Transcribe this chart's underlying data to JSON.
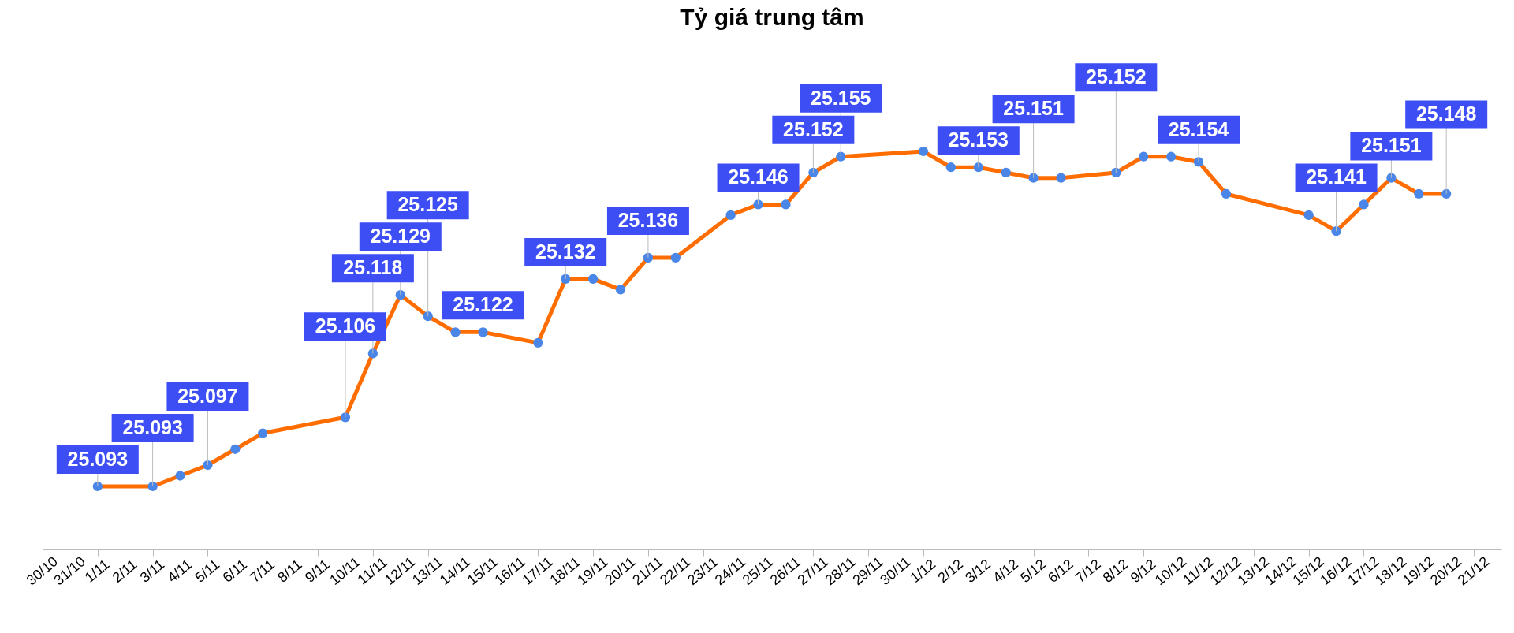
{
  "chart_data": {
    "type": "line",
    "title": "Tỷ giá trung tâm",
    "marker": "circle",
    "grid": false,
    "x": [
      "--11-01",
      "--11-03",
      "--11-04",
      "--11-05",
      "--11-06",
      "--11-07",
      "--11-10",
      "--11-11",
      "--11-12",
      "--11-13",
      "--11-14",
      "--11-15",
      "--11-17",
      "--11-18",
      "--11-19",
      "--11-20",
      "--11-21",
      "--11-22",
      "--11-24",
      "--11-25",
      "--11-26",
      "--11-27",
      "--11-28",
      "--12-01",
      "--12-02",
      "--12-03",
      "--12-04",
      "--12-05",
      "--12-06",
      "--12-08",
      "--12-09",
      "--12-10",
      "--12-11",
      "--12-12",
      "--12-15",
      "--12-16",
      "--12-17",
      "--12-18",
      "--12-19",
      "--12-20"
    ],
    "xlim": [
      "--10-30",
      "--12-22"
    ],
    "xticks": [
      {
        "value": "--10-30",
        "label": "30/10"
      },
      {
        "value": "--10-31",
        "label": "31/10"
      },
      {
        "value": "--11-01",
        "label": "1/11"
      },
      {
        "value": "--11-02",
        "label": "2/11"
      },
      {
        "value": "--11-03",
        "label": "3/11"
      },
      {
        "value": "--11-04",
        "label": "4/11"
      },
      {
        "value": "--11-05",
        "label": "5/11"
      },
      {
        "value": "--11-06",
        "label": "6/11"
      },
      {
        "value": "--11-07",
        "label": "7/11"
      },
      {
        "value": "--11-08",
        "label": "8/11"
      },
      {
        "value": "--11-09",
        "label": "9/11"
      },
      {
        "value": "--11-10",
        "label": "10/11"
      },
      {
        "value": "--11-11",
        "label": "11/11"
      },
      {
        "value": "--11-12",
        "label": "12/11"
      },
      {
        "value": "--11-13",
        "label": "13/11"
      },
      {
        "value": "--11-14",
        "label": "14/11"
      },
      {
        "value": "--11-15",
        "label": "15/11"
      },
      {
        "value": "--11-16",
        "label": "16/11"
      },
      {
        "value": "--11-17",
        "label": "17/11"
      },
      {
        "value": "--11-18",
        "label": "18/11"
      },
      {
        "value": "--11-19",
        "label": "19/11"
      },
      {
        "value": "--11-20",
        "label": "20/11"
      },
      {
        "value": "--11-21",
        "label": "21/11"
      },
      {
        "value": "--11-22",
        "label": "22/11"
      },
      {
        "value": "--11-23",
        "label": "23/11"
      },
      {
        "value": "--11-24",
        "label": "24/11"
      },
      {
        "value": "--11-25",
        "label": "25/11"
      },
      {
        "value": "--11-26",
        "label": "26/11"
      },
      {
        "value": "--11-27",
        "label": "27/11"
      },
      {
        "value": "--11-28",
        "label": "28/11"
      },
      {
        "value": "--11-29",
        "label": "29/11"
      },
      {
        "value": "--11-30",
        "label": "30/11"
      },
      {
        "value": "--12-01",
        "label": "1/12"
      },
      {
        "value": "--12-02",
        "label": "2/12"
      },
      {
        "value": "--12-03",
        "label": "3/12"
      },
      {
        "value": "--12-04",
        "label": "4/12"
      },
      {
        "value": "--12-05",
        "label": "5/12"
      },
      {
        "value": "--12-06",
        "label": "6/12"
      },
      {
        "value": "--12-07",
        "label": "7/12"
      },
      {
        "value": "--12-08",
        "label": "8/12"
      },
      {
        "value": "--12-09",
        "label": "9/12"
      },
      {
        "value": "--12-10",
        "label": "10/12"
      },
      {
        "value": "--12-11",
        "label": "11/12"
      },
      {
        "value": "--12-12",
        "label": "12/12"
      },
      {
        "value": "--12-13",
        "label": "13/12"
      },
      {
        "value": "--12-14",
        "label": "14/12"
      },
      {
        "value": "--12-15",
        "label": "15/12"
      },
      {
        "value": "--12-16",
        "label": "16/12"
      },
      {
        "value": "--12-17",
        "label": "17/12"
      },
      {
        "value": "--12-18",
        "label": "18/12"
      },
      {
        "value": "--12-19",
        "label": "19/12"
      },
      {
        "value": "--12-20",
        "label": "20/12"
      },
      {
        "value": "--12-21",
        "label": "21/12"
      }
    ],
    "series": [
      {
        "color": "#ff6d01",
        "values": [
          25.093,
          25.093,
          25.095,
          25.097,
          25.1,
          25.103,
          25.106,
          25.118,
          25.129,
          25.125,
          25.122,
          25.122,
          25.12,
          25.132,
          25.132,
          25.13,
          25.136,
          25.136,
          25.144,
          25.146,
          25.146,
          25.152,
          25.155,
          25.156,
          25.153,
          25.153,
          25.152,
          25.151,
          25.151,
          25.152,
          25.155,
          25.155,
          25.154,
          25.148,
          25.144,
          25.141,
          25.146,
          25.151,
          25.148,
          25.148
        ],
        "value_labels": [
          "25.093",
          "25.093",
          null,
          "25.097",
          null,
          null,
          "25.106",
          "25.118",
          "25.129",
          "25.125",
          null,
          "25.122",
          null,
          "25.132",
          null,
          null,
          "25.136",
          null,
          null,
          "25.146",
          null,
          "25.152",
          "25.155",
          null,
          null,
          "25.153",
          null,
          "25.151",
          null,
          "25.152",
          null,
          null,
          "25.154",
          null,
          null,
          "25.141",
          null,
          "25.151",
          null,
          "25.148"
        ]
      }
    ]
  }
}
